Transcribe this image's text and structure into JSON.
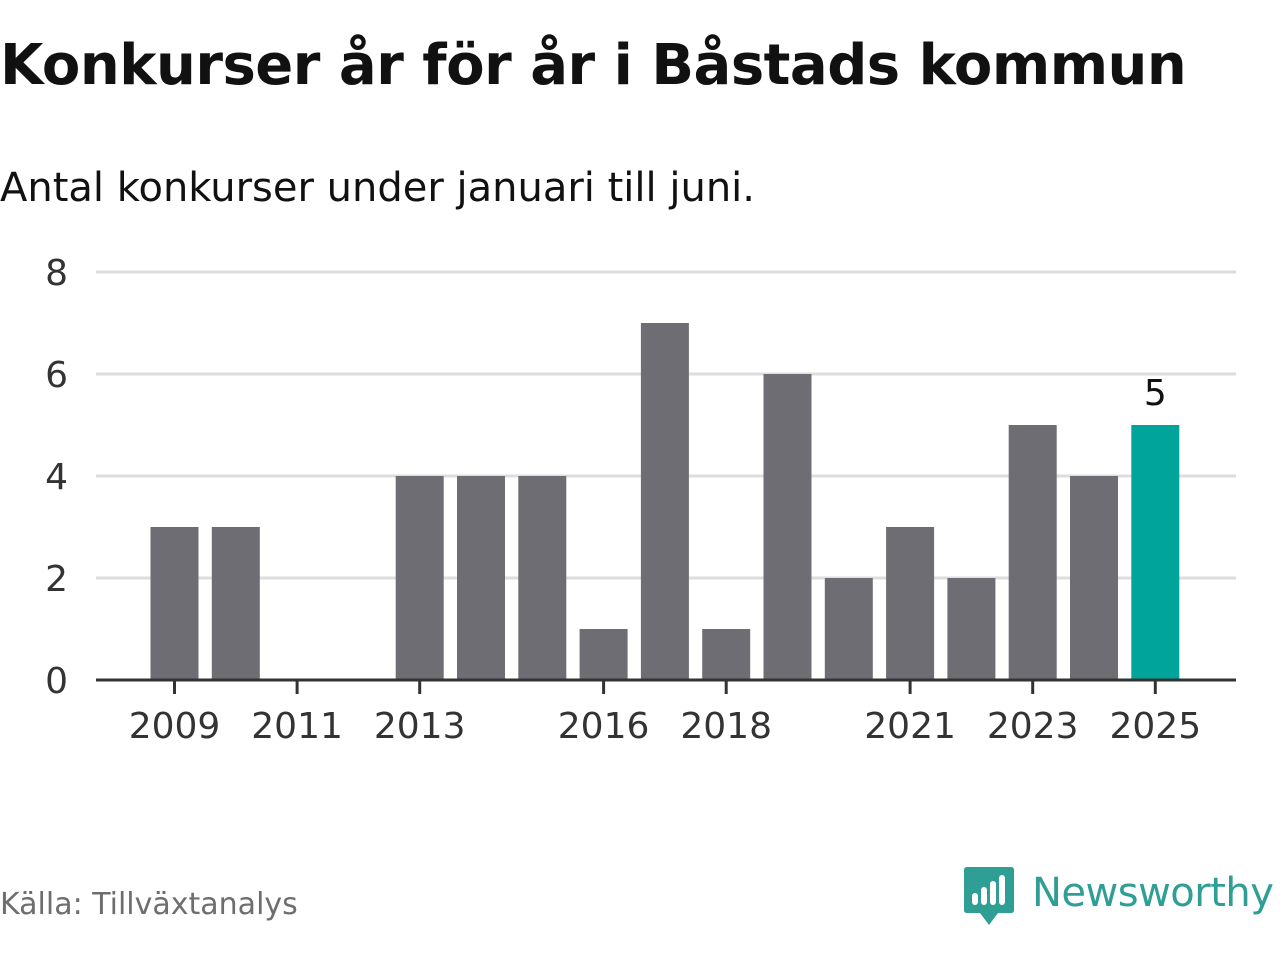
{
  "header": {
    "title": "Konkurser år för år i Båstads kommun",
    "subtitle": "Antal konkurser under januari till juni."
  },
  "chart_data": {
    "type": "bar",
    "title": "Konkurser år för år i Båstads kommun",
    "subtitle": "Antal konkurser under januari till juni.",
    "categories": [
      "2009",
      "2010",
      "2011",
      "2012",
      "2013",
      "2014",
      "2015",
      "2016",
      "2017",
      "2018",
      "2019",
      "2020",
      "2021",
      "2022",
      "2023",
      "2024",
      "2025"
    ],
    "values": [
      3,
      3,
      0,
      0,
      4,
      4,
      4,
      1,
      7,
      1,
      6,
      2,
      3,
      2,
      5,
      4,
      5
    ],
    "x_tick_labels": [
      "2009",
      "2011",
      "2013",
      "2016",
      "2018",
      "2021",
      "2023",
      "2025"
    ],
    "y_ticks": [
      0,
      2,
      4,
      6,
      8
    ],
    "ylim": [
      0,
      8
    ],
    "xlabel": "",
    "ylabel": "",
    "grid": true,
    "highlight": {
      "category": "2025",
      "label": "5"
    },
    "colors": {
      "bar": "#6e6d73",
      "highlight": "#00a49a",
      "grid": "#dddddd",
      "axis": "#333333",
      "tick_text": "#333333"
    }
  },
  "footer": {
    "source": "Källa: Tillväxtanalys",
    "brand": {
      "name": "Newsworthy",
      "icon": "newsworthy-logo-icon",
      "color": "#2f9e94"
    }
  }
}
